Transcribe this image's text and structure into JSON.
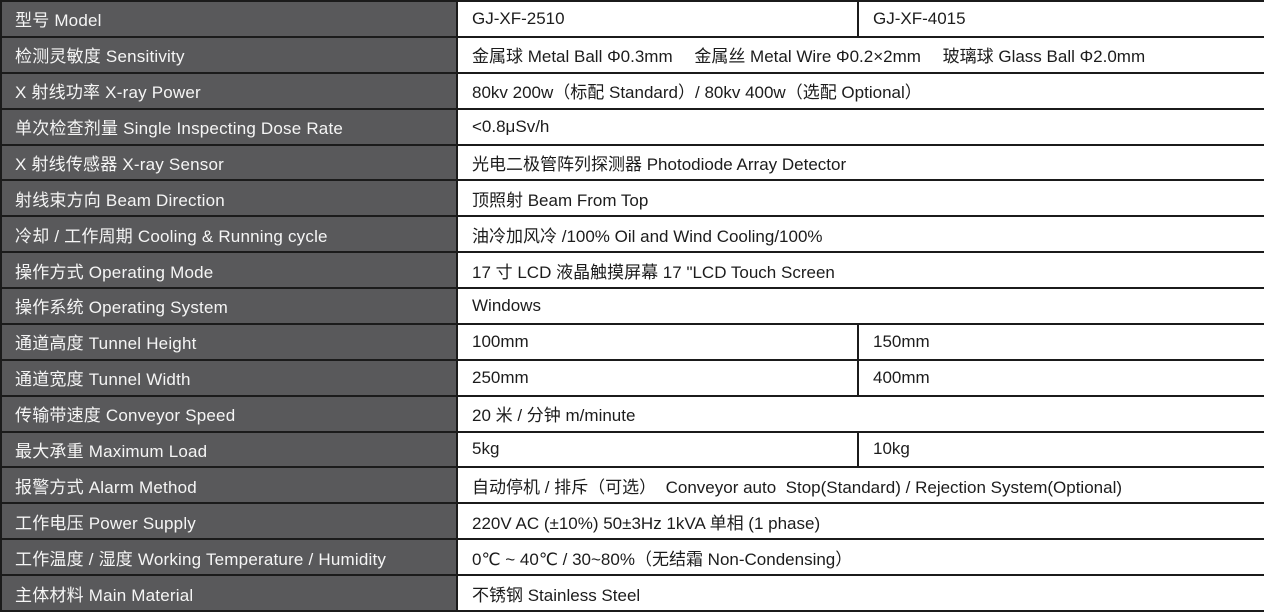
{
  "document_type": "product-specification-table",
  "colors": {
    "label_background": "#59595b",
    "label_text": "#f5f5f5",
    "value_background": "#ffffff",
    "value_text": "#1c1c1c",
    "border": "#1b1b1b"
  },
  "table": {
    "models": [
      "GJ-XF-2510",
      "GJ-XF-4015"
    ],
    "rows": [
      {
        "label": "型号 Model",
        "values": [
          "GJ-XF-2510",
          "GJ-XF-4015"
        ]
      },
      {
        "label": "检测灵敏度 Sensitivity",
        "values": [
          "金属球 Metal Ball Φ0.3mm　 金属丝 Metal Wire Φ0.2×2mm　 玻璃球 Glass Ball Φ2.0mm"
        ]
      },
      {
        "label": "X 射线功率 X-ray Power",
        "values": [
          "80kv 200w（标配 Standard）/ 80kv 400w（选配 Optional）"
        ]
      },
      {
        "label": "单次检查剂量 Single Inspecting Dose Rate",
        "values": [
          "<0.8μSv/h"
        ]
      },
      {
        "label": "X 射线传感器 X-ray Sensor",
        "values": [
          "光电二极管阵列探测器 Photodiode Array Detector"
        ]
      },
      {
        "label": "射线束方向 Beam Direction",
        "values": [
          "顶照射 Beam From Top"
        ]
      },
      {
        "label": "冷却 / 工作周期 Cooling & Running cycle",
        "values": [
          "油冷加风冷 /100% Oil and Wind Cooling/100%"
        ]
      },
      {
        "label": "操作方式 Operating Mode",
        "values": [
          "17 寸 LCD 液晶触摸屏幕 17 \"LCD Touch Screen"
        ]
      },
      {
        "label": "操作系统 Operating System",
        "values": [
          "Windows"
        ]
      },
      {
        "label": "通道高度 Tunnel Height",
        "values": [
          "100mm",
          "150mm"
        ]
      },
      {
        "label": "通道宽度 Tunnel Width",
        "values": [
          "250mm",
          "400mm"
        ]
      },
      {
        "label": "传输带速度 Conveyor Speed",
        "values": [
          "20 米 / 分钟 m/minute"
        ]
      },
      {
        "label": "最大承重 Maximum Load",
        "values": [
          "5kg",
          "10kg"
        ]
      },
      {
        "label": "报警方式 Alarm Method",
        "values": [
          "自动停机 / 排斥（可选）  Conveyor auto  Stop(Standard) / Rejection System(Optional)"
        ]
      },
      {
        "label": "工作电压 Power Supply",
        "values": [
          "220V AC (±10%) 50±3Hz 1kVA 单相 (1 phase)"
        ]
      },
      {
        "label": "工作温度 / 湿度 Working Temperature / Humidity",
        "values": [
          "0℃ ~ 40℃ / 30~80%（无结霜 Non-Condensing）"
        ]
      },
      {
        "label": "主体材料 Main Material",
        "values": [
          "不锈钢 Stainless Steel"
        ]
      }
    ]
  }
}
